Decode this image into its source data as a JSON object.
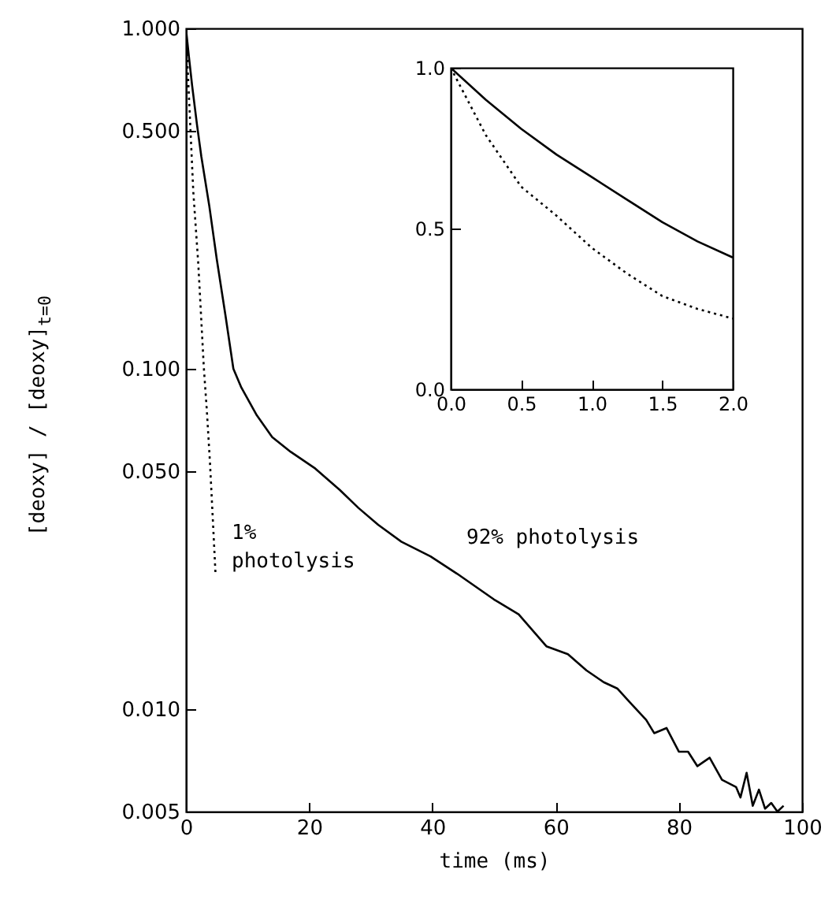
{
  "chart_data": [
    {
      "type": "line",
      "xlabel": "time (ms)",
      "ylabel": "[deoxy] / [deoxy]$_{t=0}$",
      "log": "y",
      "xlim": [
        0,
        100
      ],
      "xticks": [
        0,
        20,
        40,
        60,
        80,
        100
      ],
      "ylim": [
        0.005,
        1
      ],
      "yticks": [
        {
          "value": 0.005,
          "label": "0.005"
        },
        {
          "value": 0.01,
          "label": "0.010"
        },
        {
          "value": 0.05,
          "label": "0.050"
        },
        {
          "value": 0.1,
          "label": "0.100"
        },
        {
          "value": 0.5,
          "label": "0.500"
        },
        {
          "value": 1,
          "label": "1.000"
        }
      ],
      "grid": false,
      "annotations": [
        "1%\nphotolysis",
        "92% photolysis"
      ],
      "series": [
        {
          "color": "#000000",
          "line_style": "solid",
          "x": [
            0,
            0.5,
            1,
            1.8,
            2.5,
            3.8,
            5,
            6.4,
            7.7,
            9,
            11.5,
            14,
            17,
            21,
            25,
            28,
            31.2,
            35,
            39.7,
            44,
            50,
            54,
            58.5,
            62,
            65,
            67.8,
            70,
            72,
            74.7,
            76,
            78,
            80,
            81.5,
            83,
            85,
            87,
            89.3,
            90,
            91,
            92,
            93,
            94,
            95,
            96,
            97
          ],
          "values": [
            1,
            0.82,
            0.68,
            0.52,
            0.42,
            0.3,
            0.21,
            0.144,
            0.1,
            0.088,
            0.073,
            0.063,
            0.057,
            0.0509,
            0.044,
            0.039,
            0.0348,
            0.031,
            0.0281,
            0.025,
            0.021,
            0.019,
            0.0153,
            0.0145,
            0.013,
            0.012,
            0.0115,
            0.0105,
            0.0093,
            0.0085,
            0.0088,
            0.0075,
            0.0075,
            0.0068,
            0.0072,
            0.0062,
            0.0059,
            0.0055,
            0.0065,
            0.0052,
            0.0058,
            0.0051,
            0.0053,
            0.005,
            0.0052
          ]
        },
        {
          "color": "#000000",
          "line_style": "dotted",
          "x": [
            0,
            0.3,
            0.7,
            1.2,
            2.0,
            2.9,
            3.4,
            3.9,
            4.4,
            4.8
          ],
          "values": [
            1,
            0.75,
            0.52,
            0.33,
            0.204,
            0.101,
            0.075,
            0.053,
            0.035,
            0.025
          ]
        }
      ]
    },
    {
      "type": "line",
      "xlim": [
        0,
        2
      ],
      "xticks": [
        {
          "value": 0,
          "label": "0.0"
        },
        {
          "value": 0.5,
          "label": "0.5"
        },
        {
          "value": 1,
          "label": "1.0"
        },
        {
          "value": 1.5,
          "label": "1.5"
        },
        {
          "value": 2,
          "label": "2.0"
        }
      ],
      "ylim": [
        0,
        1
      ],
      "yticks": [
        {
          "value": 0,
          "label": "0.0"
        },
        {
          "value": 0.5,
          "label": "0.5"
        },
        {
          "value": 1,
          "label": "1.0"
        }
      ],
      "grid": false,
      "series": [
        {
          "color": "#000000",
          "line_style": "solid",
          "x": [
            0,
            0.25,
            0.5,
            0.75,
            1,
            1.25,
            1.5,
            1.75,
            2
          ],
          "values": [
            1,
            0.9,
            0.81,
            0.73,
            0.66,
            0.59,
            0.52,
            0.46,
            0.41
          ]
        },
        {
          "color": "#000000",
          "line_style": "dotted",
          "x": [
            0,
            0.25,
            0.5,
            0.75,
            1,
            1.25,
            1.5,
            1.75,
            2
          ],
          "values": [
            1,
            0.79,
            0.63,
            0.54,
            0.44,
            0.36,
            0.29,
            0.25,
            0.22
          ]
        }
      ]
    }
  ]
}
